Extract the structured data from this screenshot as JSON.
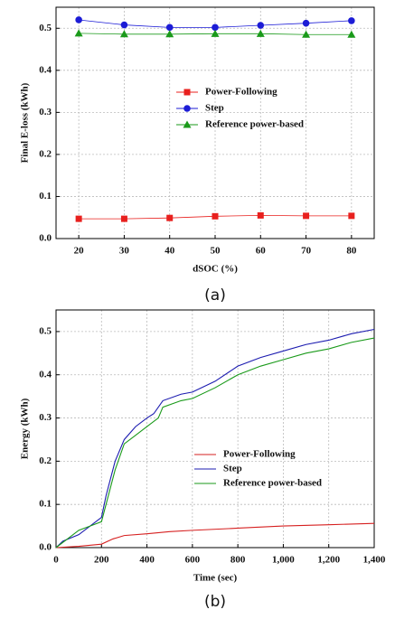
{
  "chart_data": [
    {
      "type": "line",
      "y_label": "Final E-loss (kWh)",
      "x_label": "dSOC (%)",
      "caption": "(a)",
      "x": [
        20,
        30,
        40,
        50,
        60,
        70,
        80
      ],
      "xlim": [
        15,
        85
      ],
      "xticks": [
        20,
        30,
        40,
        50,
        60,
        70,
        80
      ],
      "ylim": [
        0,
        0.55
      ],
      "yticks": [
        {
          "value": 0,
          "label": "0.0"
        },
        0.1,
        0.2,
        0.3,
        0.4,
        0.5
      ],
      "grid": true,
      "series": [
        {
          "name": "Power-Following",
          "color": "#e8201e",
          "marker": "square",
          "values": [
            0.047,
            0.047,
            0.049,
            0.053,
            0.055,
            0.054,
            0.054
          ]
        },
        {
          "name": "Step",
          "color": "#1c1cd6",
          "marker": "circle",
          "values": [
            0.52,
            0.508,
            0.502,
            0.502,
            0.507,
            0.512,
            0.518
          ]
        },
        {
          "name": "Reference power-based",
          "color": "#1a9a1a",
          "marker": "triangle",
          "values": [
            0.488,
            0.486,
            0.486,
            0.487,
            0.487,
            0.485,
            0.485
          ]
        }
      ]
    },
    {
      "type": "line",
      "y_label": "Energy (kWh)",
      "x_label": "Time (sec)",
      "caption": "(b)",
      "xlim": [
        0,
        1400
      ],
      "xticks": [
        0,
        200,
        400,
        600,
        800,
        {
          "value": 1000,
          "label": "1,000"
        },
        {
          "value": 1200,
          "label": "1,200"
        },
        {
          "value": 1400,
          "label": "1,400"
        }
      ],
      "ylim": [
        0,
        0.55
      ],
      "yticks": [
        {
          "value": 0,
          "label": "0.0"
        },
        0.1,
        0.2,
        0.3,
        0.4,
        0.5
      ],
      "grid": true,
      "series": [
        {
          "name": "Power-Following",
          "color": "#d62020",
          "x": [
            0,
            100,
            200,
            250,
            300,
            400,
            500,
            600,
            800,
            1000,
            1200,
            1400
          ],
          "values": [
            0,
            0.003,
            0.008,
            0.02,
            0.028,
            0.032,
            0.037,
            0.04,
            0.045,
            0.05,
            0.053,
            0.056
          ]
        },
        {
          "name": "Step",
          "color": "#1c1cb0",
          "x": [
            0,
            30,
            100,
            200,
            220,
            260,
            300,
            350,
            400,
            430,
            470,
            550,
            600,
            700,
            800,
            900,
            1000,
            1100,
            1200,
            1300,
            1400
          ],
          "values": [
            0,
            0.015,
            0.03,
            0.07,
            0.12,
            0.2,
            0.25,
            0.28,
            0.3,
            0.31,
            0.34,
            0.355,
            0.36,
            0.385,
            0.42,
            0.44,
            0.455,
            0.47,
            0.48,
            0.495,
            0.505
          ]
        },
        {
          "name": "Reference power-based",
          "color": "#1a9a1a",
          "x": [
            0,
            50,
            100,
            150,
            200,
            220,
            260,
            300,
            350,
            400,
            450,
            470,
            550,
            600,
            700,
            800,
            900,
            1000,
            1100,
            1200,
            1300,
            1400
          ],
          "values": [
            0,
            0.02,
            0.04,
            0.05,
            0.06,
            0.1,
            0.18,
            0.24,
            0.26,
            0.28,
            0.3,
            0.325,
            0.34,
            0.345,
            0.37,
            0.4,
            0.42,
            0.435,
            0.45,
            0.46,
            0.475,
            0.485
          ]
        }
      ]
    }
  ]
}
